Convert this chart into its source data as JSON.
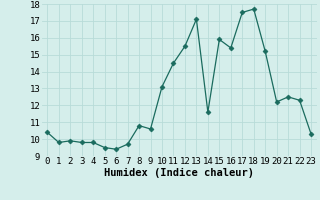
{
  "x": [
    0,
    1,
    2,
    3,
    4,
    5,
    6,
    7,
    8,
    9,
    10,
    11,
    12,
    13,
    14,
    15,
    16,
    17,
    18,
    19,
    20,
    21,
    22,
    23
  ],
  "y": [
    10.4,
    9.8,
    9.9,
    9.8,
    9.8,
    9.5,
    9.4,
    9.7,
    10.8,
    10.6,
    13.1,
    14.5,
    15.5,
    17.1,
    11.6,
    15.9,
    15.4,
    17.5,
    17.7,
    15.2,
    12.2,
    12.5,
    12.3,
    10.3
  ],
  "line_color": "#1a6b5e",
  "marker": "D",
  "marker_size": 2.5,
  "bg_color": "#d5eeeb",
  "grid_color": "#b8dbd8",
  "xlabel": "Humidex (Indice chaleur)",
  "ylim": [
    9,
    18
  ],
  "xlim": [
    -0.5,
    23.5
  ],
  "yticks": [
    9,
    10,
    11,
    12,
    13,
    14,
    15,
    16,
    17,
    18
  ],
  "xtick_labels": [
    "0",
    "1",
    "2",
    "3",
    "4",
    "5",
    "6",
    "7",
    "8",
    "9",
    "10",
    "11",
    "12",
    "13",
    "14",
    "15",
    "16",
    "17",
    "18",
    "19",
    "20",
    "21",
    "22",
    "23"
  ],
  "label_fontsize": 7.5,
  "tick_fontsize": 6.5
}
